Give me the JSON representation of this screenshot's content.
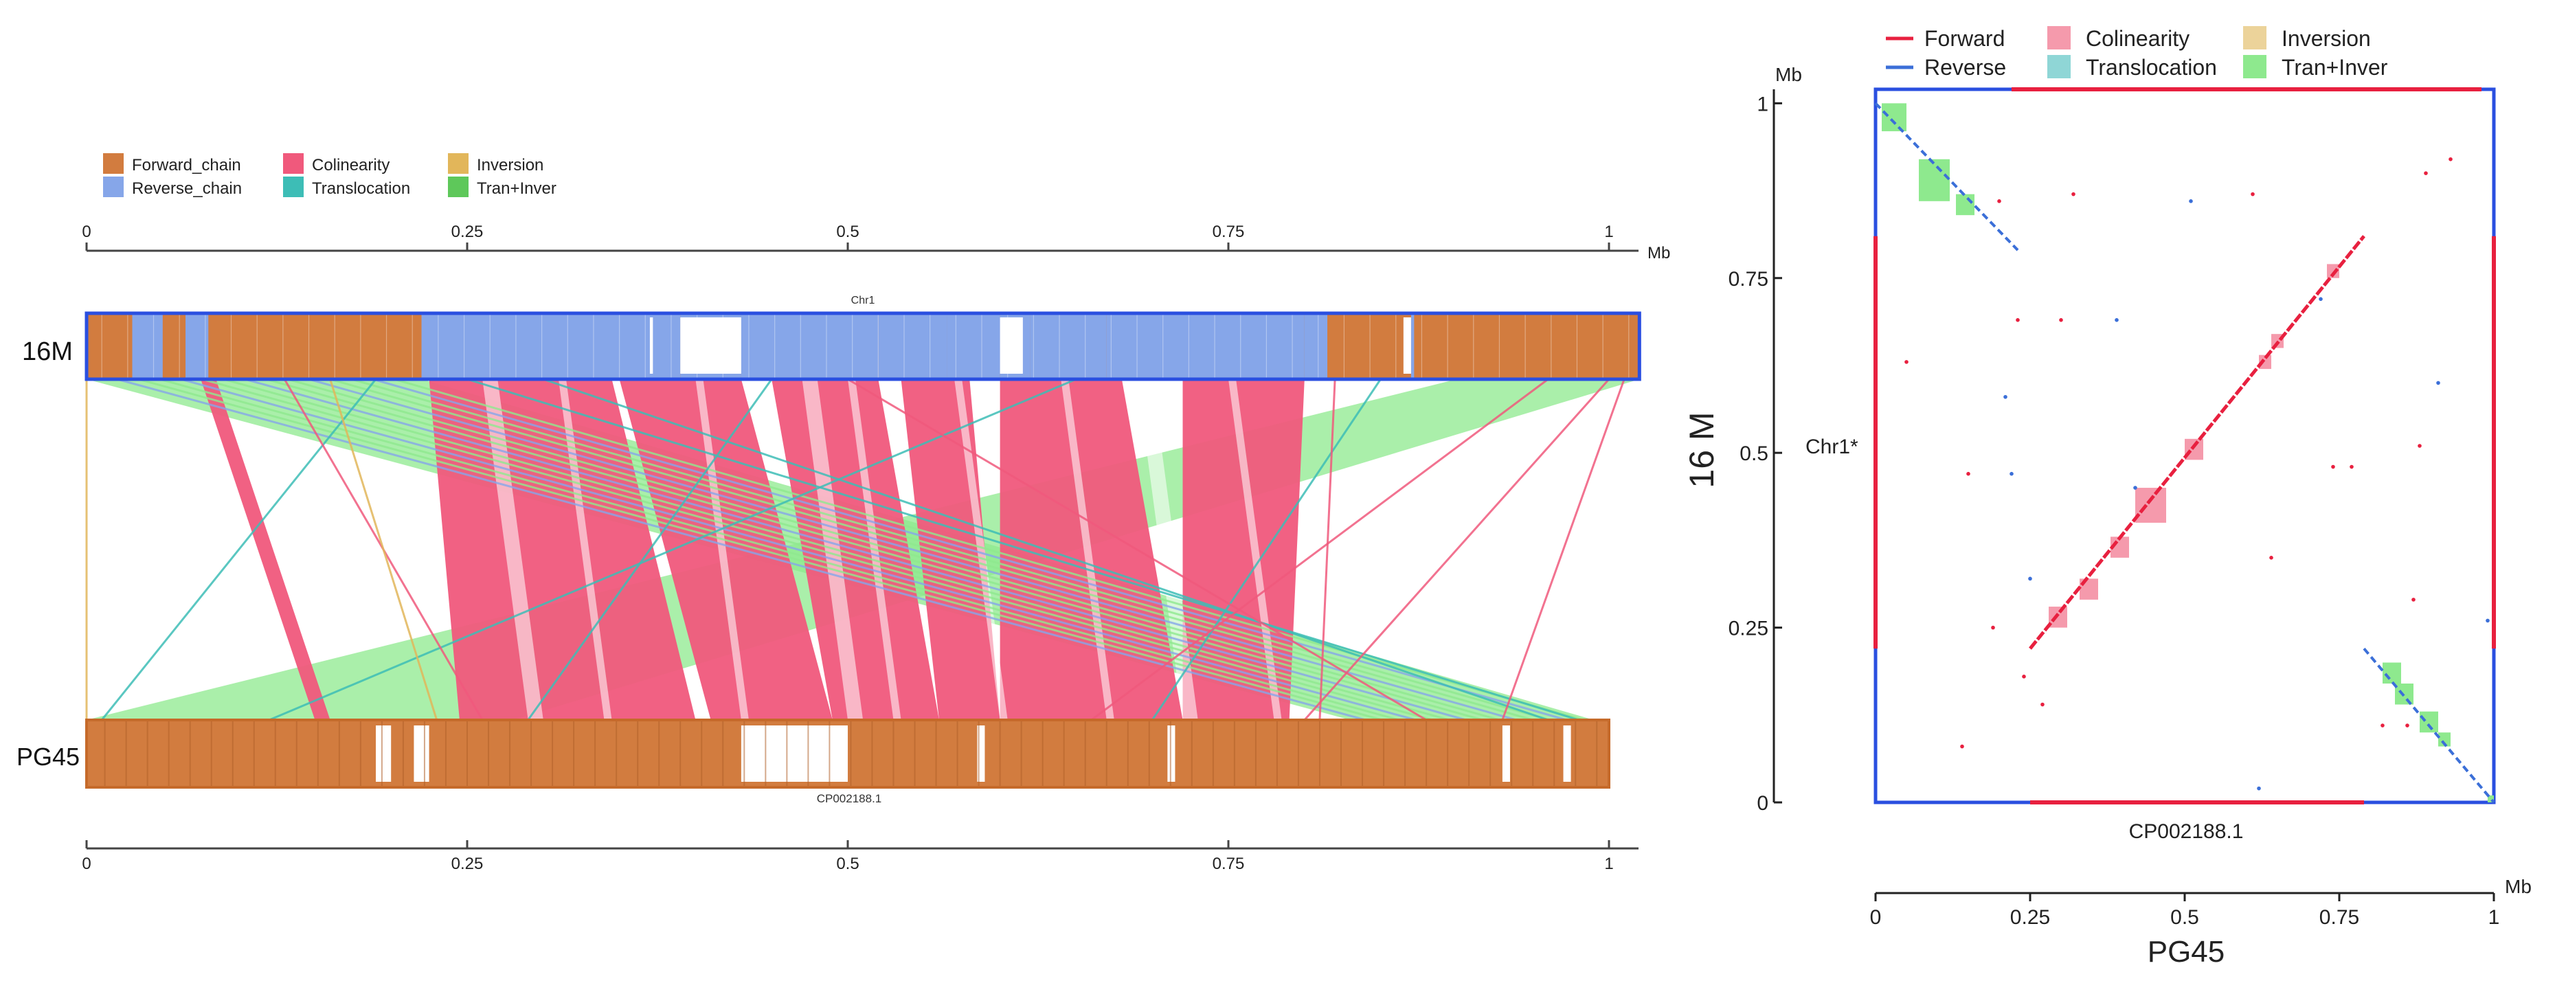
{
  "colors": {
    "forward_chain": "#d27c3f",
    "reverse_chain": "#86a6e9",
    "colinearity": "#f0597c",
    "inversion": "#e2b65a",
    "translocation": "#3dbdb6",
    "tran_inver": "#5ec85a",
    "tran_inver_band": "#8ee98e",
    "dot_forward": "#e8203f",
    "dot_reverse": "#3b6fd8",
    "dot_colinearity_box": "#f59aac",
    "dot_translocation_box": "#8fd6d6",
    "dot_inversion_box": "#ecd39a",
    "dot_tran_inver_box": "#8ee98e",
    "frame_blue": "#2a4fe0"
  },
  "chart_data": [
    {
      "type": "synteny",
      "legend": [
        {
          "label": "Forward_chain",
          "color_key": "forward_chain"
        },
        {
          "label": "Reverse_chain",
          "color_key": "reverse_chain"
        },
        {
          "label": "Colinearity",
          "color_key": "colinearity"
        },
        {
          "label": "Translocation",
          "color_key": "translocation"
        },
        {
          "label": "Inversion",
          "color_key": "inversion"
        },
        {
          "label": "Tran+Inver",
          "color_key": "tran_inver"
        }
      ],
      "axis_unit": "Mb",
      "top_ticks": [
        "0",
        "0.25",
        "0.5",
        "0.75",
        "1"
      ],
      "bottom_ticks": [
        "0",
        "0.25",
        "0.5",
        "0.75",
        "1"
      ],
      "tick_values": [
        0,
        0.25,
        0.5,
        0.75,
        1
      ],
      "x_range": [
        0,
        1.02
      ],
      "top_genome": {
        "label": "16M",
        "chrom": "Chr1",
        "length": 1.02
      },
      "bottom_genome": {
        "label": "PG45",
        "chrom": "CP002188.1",
        "length": 1.0
      },
      "reverse_regions_top": [
        [
          0.03,
          0.05
        ],
        [
          0.065,
          0.08
        ],
        [
          0.22,
          0.35
        ],
        [
          0.345,
          0.39
        ],
        [
          0.39,
          0.43
        ],
        [
          0.43,
          0.52
        ],
        [
          0.52,
          0.565
        ],
        [
          0.565,
          0.6
        ],
        [
          0.6,
          0.62
        ],
        [
          0.62,
          0.67
        ],
        [
          0.67,
          0.8
        ],
        [
          0.8,
          0.815
        ],
        [
          0.87,
          0.872
        ]
      ],
      "colinear_blocks": [
        {
          "top": [
            0.225,
            0.345
          ],
          "bottom": [
            0.245,
            0.4
          ]
        },
        {
          "top": [
            0.35,
            0.43
          ],
          "bottom": [
            0.41,
            0.49
          ]
        },
        {
          "top": [
            0.45,
            0.52
          ],
          "bottom": [
            0.49,
            0.56
          ]
        },
        {
          "top": [
            0.535,
            0.58
          ],
          "bottom": [
            0.56,
            0.6
          ]
        },
        {
          "top": [
            0.6,
            0.68
          ],
          "bottom": [
            0.6,
            0.72
          ]
        },
        {
          "top": [
            0.72,
            0.8
          ],
          "bottom": [
            0.72,
            0.79
          ]
        },
        {
          "top": [
            0.075,
            0.085
          ],
          "bottom": [
            0.15,
            0.16
          ]
        }
      ],
      "tran_inver_bands": [
        {
          "top": [
            0.0,
            0.22
          ],
          "bottom": [
            0.83,
            0.99
          ]
        },
        {
          "top": [
            0.9,
            1.02
          ],
          "bottom": [
            0.0,
            0.28
          ]
        }
      ],
      "thin_links": [
        {
          "top": 0.19,
          "bottom": 0.01,
          "kind": "translocation"
        },
        {
          "top": 0.3,
          "bottom": 0.96,
          "kind": "translocation"
        },
        {
          "top": 0.25,
          "bottom": 0.98,
          "kind": "translocation"
        },
        {
          "top": 0.65,
          "bottom": 0.12,
          "kind": "translocation"
        },
        {
          "top": 0.85,
          "bottom": 0.7,
          "kind": "translocation"
        },
        {
          "top": 0.96,
          "bottom": 0.66,
          "kind": "colinearity"
        },
        {
          "top": 1.0,
          "bottom": 0.8,
          "kind": "colinearity"
        },
        {
          "top": 1.01,
          "bottom": 0.93,
          "kind": "colinearity"
        },
        {
          "top": 0.82,
          "bottom": 0.81,
          "kind": "colinearity"
        },
        {
          "top": 0.13,
          "bottom": 0.26,
          "kind": "colinearity"
        },
        {
          "top": 0.0,
          "bottom": 0.0,
          "kind": "inversion"
        },
        {
          "top": 0.16,
          "bottom": 0.23,
          "kind": "inversion"
        },
        {
          "top": 0.5,
          "bottom": 0.88,
          "kind": "colinearity"
        },
        {
          "top": 0.45,
          "bottom": 0.29,
          "kind": "translocation"
        }
      ]
    },
    {
      "type": "dotplot",
      "legend": [
        {
          "label": "Forward",
          "kind": "line",
          "color_key": "dot_forward"
        },
        {
          "label": "Colinearity",
          "kind": "box",
          "color_key": "dot_colinearity_box"
        },
        {
          "label": "Inversion",
          "kind": "box",
          "color_key": "dot_inversion_box"
        },
        {
          "label": "Reverse",
          "kind": "line",
          "color_key": "dot_reverse"
        },
        {
          "label": "Translocation",
          "kind": "box",
          "color_key": "dot_translocation_box"
        },
        {
          "label": "Tran+Inver",
          "kind": "box",
          "color_key": "dot_tran_inver_box"
        }
      ],
      "xlabel": "PG45",
      "ylabel": "16 M",
      "x_chrom": "CP002188.1",
      "y_chrom": "Chr1*",
      "axis_unit": "Mb",
      "x_ticks": [
        "0",
        "0.25",
        "0.5",
        "0.75",
        "1"
      ],
      "y_ticks": [
        "0",
        "0.25",
        "0.5",
        "0.75",
        "1"
      ],
      "tick_values": [
        0,
        0.25,
        0.5,
        0.75,
        1
      ],
      "xlim": [
        0,
        1
      ],
      "ylim": [
        0,
        1.02
      ],
      "forward_diagonal": {
        "x": [
          0.25,
          0.79
        ],
        "y": [
          0.22,
          0.81
        ]
      },
      "colinearity_boxes": [
        {
          "x": [
            0.42,
            0.47
          ],
          "y": [
            0.4,
            0.45
          ]
        },
        {
          "x": [
            0.28,
            0.31
          ],
          "y": [
            0.25,
            0.28
          ]
        },
        {
          "x": [
            0.33,
            0.36
          ],
          "y": [
            0.29,
            0.32
          ]
        },
        {
          "x": [
            0.38,
            0.41
          ],
          "y": [
            0.35,
            0.38
          ]
        },
        {
          "x": [
            0.5,
            0.53
          ],
          "y": [
            0.49,
            0.52
          ]
        },
        {
          "x": [
            0.62,
            0.64
          ],
          "y": [
            0.62,
            0.64
          ]
        },
        {
          "x": [
            0.64,
            0.66
          ],
          "y": [
            0.65,
            0.67
          ]
        },
        {
          "x": [
            0.73,
            0.75
          ],
          "y": [
            0.75,
            0.77
          ]
        }
      ],
      "reverse_top_left": {
        "x": [
          0.0,
          0.23
        ],
        "y": [
          1.0,
          0.79
        ]
      },
      "reverse_bottom_right": {
        "x": [
          0.79,
          1.0
        ],
        "y": [
          0.22,
          0.0
        ]
      },
      "tran_inver_boxes": [
        {
          "x": [
            0.01,
            0.05
          ],
          "y": [
            0.96,
            1.0
          ]
        },
        {
          "x": [
            0.07,
            0.12
          ],
          "y": [
            0.86,
            0.92
          ]
        },
        {
          "x": [
            0.13,
            0.16
          ],
          "y": [
            0.84,
            0.87
          ]
        },
        {
          "x": [
            0.82,
            0.85
          ],
          "y": [
            0.17,
            0.2
          ]
        },
        {
          "x": [
            0.84,
            0.87
          ],
          "y": [
            0.14,
            0.17
          ]
        },
        {
          "x": [
            0.88,
            0.91
          ],
          "y": [
            0.1,
            0.13
          ]
        },
        {
          "x": [
            0.91,
            0.93
          ],
          "y": [
            0.08,
            0.1
          ]
        },
        {
          "x": [
            0.99,
            1.0
          ],
          "y": [
            0.0,
            0.01
          ]
        }
      ],
      "scatter_forward": [
        [
          0.89,
          0.9
        ],
        [
          0.93,
          0.92
        ],
        [
          0.05,
          0.63
        ],
        [
          0.15,
          0.47
        ],
        [
          0.19,
          0.25
        ],
        [
          0.82,
          0.11
        ],
        [
          0.86,
          0.11
        ],
        [
          0.87,
          0.29
        ],
        [
          0.88,
          0.51
        ],
        [
          0.74,
          0.48
        ],
        [
          0.77,
          0.48
        ],
        [
          0.23,
          0.69
        ],
        [
          0.3,
          0.69
        ],
        [
          0.14,
          0.08
        ],
        [
          0.64,
          0.35
        ],
        [
          0.61,
          0.87
        ],
        [
          0.2,
          0.86
        ],
        [
          0.32,
          0.87
        ],
        [
          0.24,
          0.18
        ],
        [
          0.27,
          0.14
        ]
      ],
      "scatter_reverse": [
        [
          0.21,
          0.58
        ],
        [
          0.25,
          0.32
        ],
        [
          0.39,
          0.69
        ],
        [
          0.42,
          0.45
        ],
        [
          0.51,
          0.86
        ],
        [
          0.72,
          0.72
        ],
        [
          0.91,
          0.6
        ],
        [
          0.22,
          0.47
        ],
        [
          0.62,
          0.02
        ],
        [
          0.99,
          0.26
        ]
      ]
    }
  ]
}
